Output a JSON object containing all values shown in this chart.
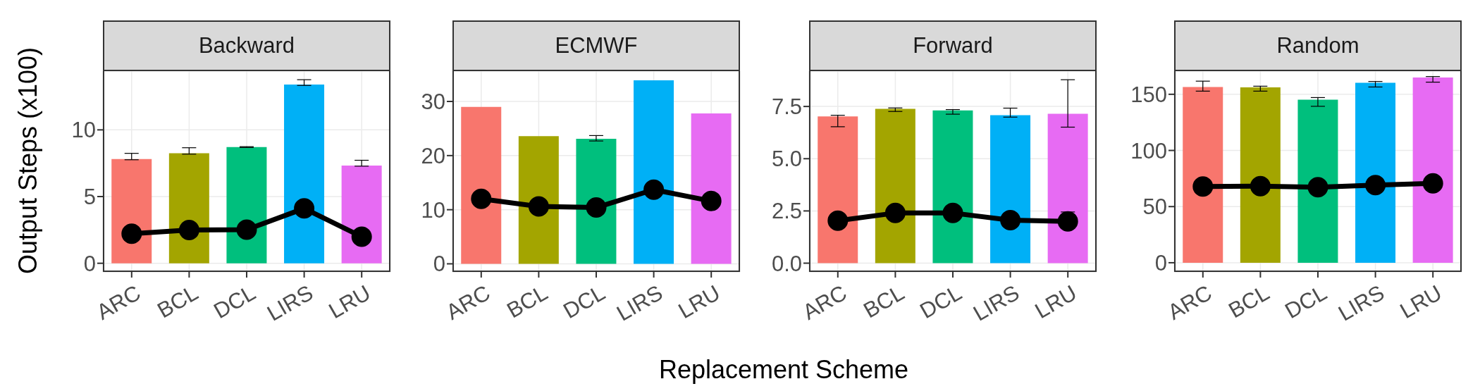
{
  "chart_data": [
    {
      "type": "bar",
      "title": "Backward",
      "ylabel": "Output Steps (x100)",
      "categories": [
        "ARC",
        "BCL",
        "DCL",
        "LIRS",
        "LRU"
      ],
      "grid": true,
      "ylim": [
        -0.65,
        14.4
      ],
      "yticks": [
        0,
        5,
        10
      ],
      "series": [
        {
          "colors": [
            "#f8766d",
            "#a3a500",
            "#00bf7d",
            "#00b0f6",
            "#e76bf3"
          ],
          "values": [
            7.81,
            8.25,
            8.71,
            13.4,
            7.32
          ],
          "errors": [
            [
              7.76,
              8.24
            ],
            [
              8.18,
              8.66
            ],
            [
              8.68,
              8.74
            ],
            [
              13.33,
              13.76
            ],
            [
              7.28,
              7.72
            ]
          ]
        },
        {
          "type": "line",
          "color": "#000000",
          "marker": "circle",
          "line_style": "solid",
          "values": [
            2.22,
            2.49,
            2.52,
            4.11,
            1.99
          ]
        }
      ]
    },
    {
      "type": "bar",
      "title": "ECMWF",
      "categories": [
        "ARC",
        "BCL",
        "DCL",
        "LIRS",
        "LRU"
      ],
      "grid": true,
      "ylim": [
        -1.5,
        35.6
      ],
      "yticks": [
        0,
        10,
        20,
        30
      ],
      "series": [
        {
          "colors": [
            "#f8766d",
            "#a3a500",
            "#00bf7d",
            "#00b0f6",
            "#e76bf3"
          ],
          "values": [
            29.0,
            23.6,
            23.1,
            33.9,
            27.8
          ],
          "errors": [
            null,
            null,
            [
              22.7,
              23.7
            ],
            null,
            null
          ]
        },
        {
          "type": "line",
          "color": "#000000",
          "marker": "circle",
          "line_style": "solid",
          "values": [
            12.0,
            10.6,
            10.4,
            13.7,
            11.6
          ]
        }
      ]
    },
    {
      "type": "bar",
      "title": "Forward",
      "xlabel": "Replacement Scheme",
      "categories": [
        "ARC",
        "BCL",
        "DCL",
        "LIRS",
        "LRU"
      ],
      "grid": true,
      "ylim": [
        -0.42,
        9.19
      ],
      "yticks": [
        {
          "value": 0,
          "label": "0.0"
        },
        2.5,
        {
          "value": 5,
          "label": "5.0"
        },
        7.5
      ],
      "series": [
        {
          "colors": [
            "#f8766d",
            "#a3a500",
            "#00bf7d",
            "#00b0f6",
            "#e76bf3"
          ],
          "values": [
            7.02,
            7.39,
            7.31,
            7.08,
            7.15
          ],
          "errors": [
            [
              6.53,
              7.08
            ],
            [
              7.26,
              7.43
            ],
            [
              7.13,
              7.35
            ],
            [
              6.99,
              7.42
            ],
            [
              6.51,
              8.78
            ]
          ]
        },
        {
          "type": "line",
          "color": "#000000",
          "marker": "circle",
          "line_style": "solid",
          "values": [
            2.03,
            2.4,
            2.4,
            2.06,
            2.0
          ],
          "errors": [
            null,
            null,
            null,
            null,
            [
              1.95,
              2.45
            ]
          ]
        }
      ]
    },
    {
      "type": "bar",
      "title": "Random",
      "categories": [
        "ARC",
        "BCL",
        "DCL",
        "LIRS",
        "LRU"
      ],
      "grid": true,
      "ylim": [
        -8.2,
        170.6
      ],
      "yticks": [
        0,
        50,
        100,
        150
      ],
      "series": [
        {
          "colors": [
            "#f8766d",
            "#a3a500",
            "#00bf7d",
            "#00b0f6",
            "#e76bf3"
          ],
          "values": [
            156.5,
            156.1,
            145.2,
            160.3,
            164.9
          ],
          "errors": [
            [
              152.8,
              161.7
            ],
            [
              152.8,
              157.2
            ],
            [
              139.3,
              147.1
            ],
            [
              156.5,
              161.4
            ],
            [
              160.8,
              165.8
            ]
          ]
        },
        {
          "type": "line",
          "color": "#000000",
          "marker": "circle",
          "line_style": "solid",
          "values": [
            67.8,
            68.2,
            67.2,
            69.1,
            70.7
          ]
        }
      ]
    }
  ]
}
